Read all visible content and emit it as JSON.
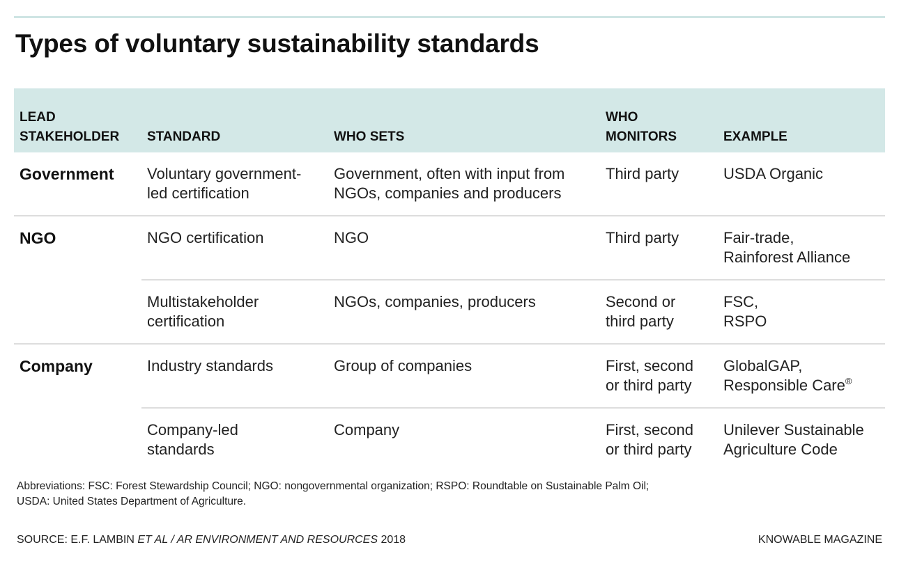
{
  "title": "Types of voluntary sustainability standards",
  "table": {
    "headers": {
      "lead_stakeholder": [
        "LEAD",
        "STAKEHOLDER"
      ],
      "standard": "STANDARD",
      "who_sets": "WHO SETS",
      "who_monitors": [
        "WHO",
        "MONITORS"
      ],
      "example": "EXAMPLE"
    },
    "rows": [
      {
        "stakeholder": "Government",
        "standard": [
          "Voluntary government-",
          "led certification"
        ],
        "who_sets": [
          "Government, often with input from",
          "NGOs, companies and producers"
        ],
        "who_monitors": [
          "Third party"
        ],
        "example": [
          "USDA Organic"
        ]
      },
      {
        "stakeholder": "NGO",
        "standard": [
          "NGO certification"
        ],
        "who_sets": [
          "NGO"
        ],
        "who_monitors": [
          "Third party"
        ],
        "example": [
          "Fair-trade,",
          "Rainforest Alliance"
        ]
      },
      {
        "stakeholder": "",
        "standard": [
          "Multistakeholder",
          "certification"
        ],
        "who_sets": [
          "NGOs, companies, producers"
        ],
        "who_monitors": [
          "Second or",
          "third party"
        ],
        "example": [
          "FSC,",
          "RSPO"
        ]
      },
      {
        "stakeholder": "Company",
        "standard": [
          "Industry standards"
        ],
        "who_sets": [
          "Group of companies"
        ],
        "who_monitors": [
          "First, second",
          "or third party"
        ],
        "example": [
          "GlobalGAP,",
          "Responsible Care"
        ],
        "example_superscript": "®"
      },
      {
        "stakeholder": "",
        "standard": [
          "Company-led",
          "standards"
        ],
        "who_sets": [
          "Company"
        ],
        "who_monitors": [
          "First, second",
          "or third party"
        ],
        "example": [
          "Unilever Sustainable",
          "Agriculture Code"
        ]
      }
    ]
  },
  "footer": {
    "abbreviations": [
      "Abbreviations: FSC: Forest Stewardship Council; NGO: nongovernmental organization; RSPO: Roundtable on Sustainable Palm Oil;",
      "USDA: United States Department of Agriculture."
    ],
    "source_prefix": "SOURCE: E.F. LAMBIN ",
    "source_italic": "ET AL / AR ENVIRONMENT AND RESOURCES",
    "source_year": " 2018",
    "credit": "KNOWABLE MAGAZINE"
  },
  "colors": {
    "header_bg": "#d3e8e7",
    "top_rule": "#cfe5e4",
    "divider": "#dddddd",
    "text": "#111111"
  }
}
